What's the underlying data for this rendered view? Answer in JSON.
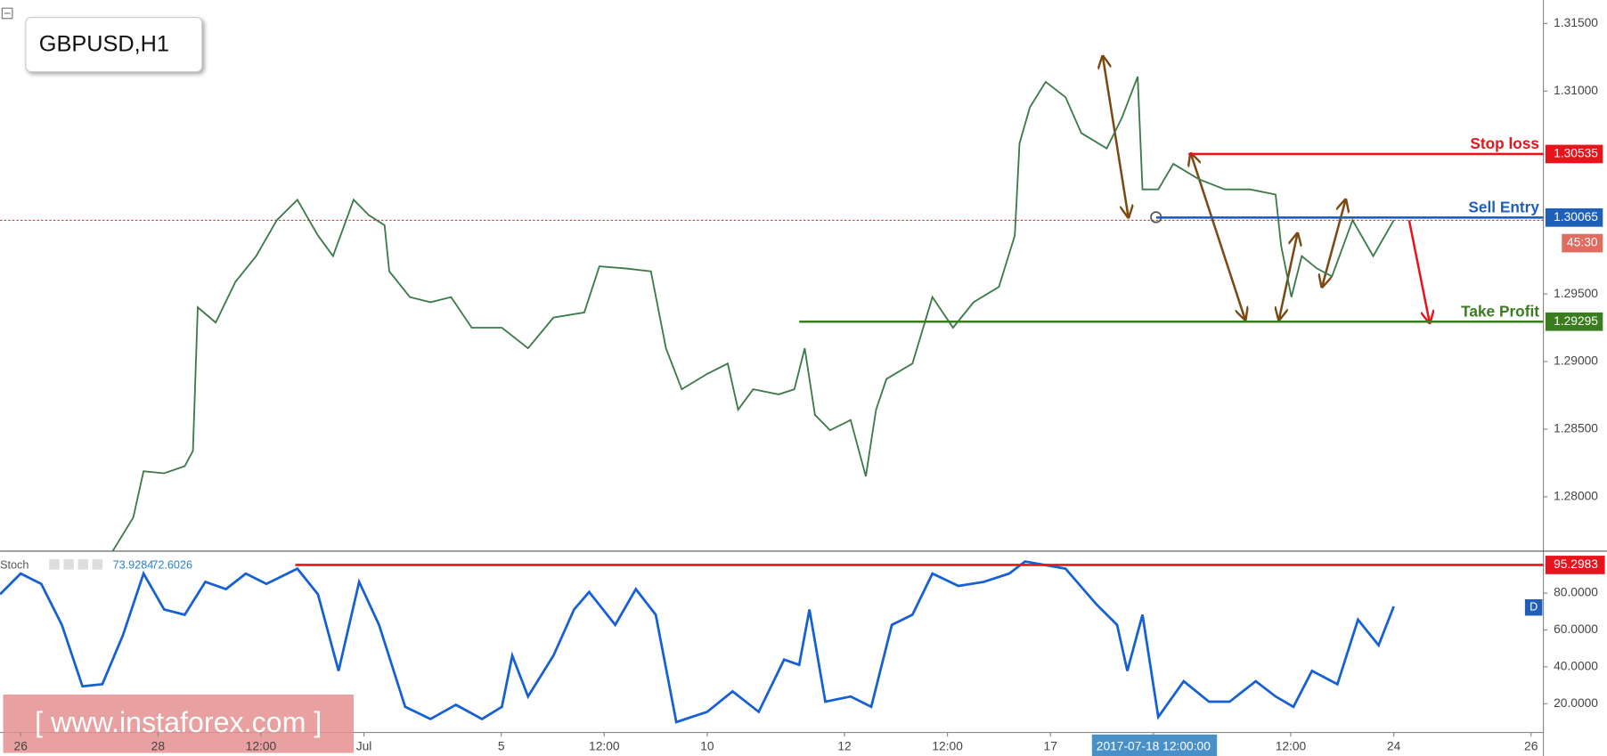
{
  "chart_data": [
    {
      "type": "line",
      "title": "GBPUSD,H1",
      "color": "#3d7a4a",
      "x": [
        1.34,
        1.64,
        1.79,
        2.09,
        2.39,
        2.51,
        2.58,
        2.84,
        3.13,
        3.43,
        3.73,
        4.03,
        4.33,
        4.55,
        4.85,
        5.07,
        5.3,
        5.37,
        5.67,
        5.97,
        6.27,
        6.57,
        7.01,
        7.39,
        7.76,
        8.21,
        8.43,
        8.81,
        9.18,
        9.4,
        9.63,
        10,
        10.3,
        10.45,
        10.67,
        11.04,
        11.27,
        11.42,
        11.57,
        11.79,
        12.09,
        12.31,
        12.46,
        12.61,
        12.99,
        13.28,
        13.58,
        13.88,
        14.25,
        14.48,
        14.55,
        14.7,
        14.93,
        15.22,
        15.45,
        15.82,
        16.04,
        16.27,
        16.34,
        16.57,
        16.79,
        17.16,
        17.54,
        17.91,
        18.28,
        18.36,
        18.51,
        18.66,
        18.88,
        19.1,
        19.4,
        19.7,
        20
      ],
      "values": [
        1.27598,
        1.27847,
        1.28189,
        1.28174,
        1.28226,
        1.2834,
        1.29401,
        1.29288,
        1.29591,
        1.2978,
        1.30045,
        1.30197,
        1.29932,
        1.2978,
        1.30197,
        1.30083,
        1.30008,
        1.29667,
        1.29477,
        1.29439,
        1.29477,
        1.2925,
        1.2925,
        1.29098,
        1.29325,
        1.29363,
        1.29704,
        1.29689,
        1.29667,
        1.29098,
        1.28795,
        1.28909,
        1.28985,
        1.28644,
        1.28795,
        1.28757,
        1.28795,
        1.29098,
        1.28606,
        1.28492,
        1.28568,
        1.28151,
        1.28644,
        1.28871,
        1.28985,
        1.29477,
        1.2925,
        1.29439,
        1.29553,
        1.29932,
        1.30614,
        1.3088,
        1.31069,
        1.30955,
        1.3069,
        1.30576,
        1.30803,
        1.31107,
        1.30273,
        1.30273,
        1.30462,
        1.30349,
        1.30273,
        1.30273,
        1.30235,
        1.29856,
        1.29477,
        1.2978,
        1.29689,
        1.29629,
        1.30045,
        1.2978,
        1.30045
      ],
      "xlim": [
        -0.3,
        22.18
      ],
      "ylim": [
        1.27598,
        1.31674
      ],
      "yticks": [
        {
          "value": 1.28,
          "label": "1.28000"
        },
        {
          "value": 1.285,
          "label": "1.28500"
        },
        {
          "value": 1.29,
          "label": "1.29000"
        },
        {
          "value": 1.295,
          "label": "1.29500"
        },
        {
          "value": 1.31,
          "label": "1.31000"
        },
        {
          "value": 1.315,
          "label": "1.31500"
        }
      ],
      "xticks": [
        {
          "value": 0,
          "label": "26"
        },
        {
          "value": 2,
          "label": "28"
        },
        {
          "value": 3.5,
          "label": "12:00"
        },
        {
          "value": 5,
          "label": "Jul"
        },
        {
          "value": 7,
          "label": "5"
        },
        {
          "value": 8.5,
          "label": "12:00"
        },
        {
          "value": 10,
          "label": "10"
        },
        {
          "value": 12,
          "label": "12"
        },
        {
          "value": 13.5,
          "label": "12:00"
        },
        {
          "value": 15,
          "label": "17"
        },
        {
          "value": 16.5,
          "label": "2017-07-18 12:00:00",
          "highlight": true
        },
        {
          "value": 18.5,
          "label": "12:00"
        },
        {
          "value": 20,
          "label": "24"
        },
        {
          "value": 22,
          "label": "26"
        }
      ],
      "levels": [
        {
          "label": "Stop loss",
          "value": 1.30535,
          "color": "#e8141c",
          "from": 17.01
        },
        {
          "label": "Sell Entry",
          "value": 1.30065,
          "color": "#1f5fb8",
          "from": 16.54
        },
        {
          "label": "Take Profit",
          "value": 1.29295,
          "color": "#3a7d1e",
          "from": 11.34
        }
      ],
      "countdown": "45:30"
    },
    {
      "type": "line",
      "title": "Stoch",
      "readout": [
        73.9284,
        72.6026
      ],
      "badge": "D",
      "color": "#1560d4",
      "x": [
        -0.3,
        0,
        0.3,
        0.6,
        0.9,
        1.19,
        1.49,
        1.79,
        2.09,
        2.39,
        2.69,
        2.99,
        3.28,
        3.58,
        4.03,
        4.33,
        4.63,
        4.93,
        5.22,
        5.6,
        5.97,
        6.34,
        6.72,
        7.01,
        7.16,
        7.39,
        7.76,
        8.06,
        8.28,
        8.66,
        8.96,
        9.25,
        9.55,
        10,
        10.37,
        10.75,
        11.12,
        11.34,
        11.49,
        11.72,
        12.09,
        12.39,
        12.69,
        12.99,
        13.28,
        13.66,
        14.03,
        14.4,
        14.63,
        15.22,
        15.67,
        15.97,
        16.12,
        16.34,
        16.57,
        16.94,
        17.31,
        17.61,
        17.99,
        18.28,
        18.54,
        18.81,
        19.18,
        19.48,
        19.78,
        20
      ],
      "values": [
        79.4,
        90.6,
        85,
        62.8,
        29.4,
        30.6,
        57.2,
        90.6,
        71.1,
        68.3,
        86.1,
        82.2,
        90.6,
        85,
        93.3,
        79.4,
        37.8,
        86.1,
        62.8,
        18.3,
        11.7,
        19.4,
        11.7,
        18.3,
        46.1,
        23.9,
        46.1,
        71.1,
        80.6,
        62.8,
        82.2,
        68.3,
        10,
        15.6,
        26.7,
        15.6,
        43.9,
        41.1,
        71.1,
        21.1,
        23.9,
        18.3,
        62.8,
        68.3,
        90.6,
        83.9,
        86.1,
        90.6,
        97.2,
        93.3,
        73.9,
        62.8,
        37.8,
        68.3,
        12.8,
        32.2,
        21.1,
        21.1,
        32.2,
        23.9,
        18.3,
        37.8,
        30.6,
        65.6,
        51.7,
        72.8
      ],
      "xlim": [
        -0.3,
        22.18
      ],
      "ylim": [
        4.4,
        102.8
      ],
      "yticks": [
        {
          "value": 20,
          "label": "20.0000"
        },
        {
          "value": 40,
          "label": "40.0000"
        },
        {
          "value": 60,
          "label": "60.0000"
        },
        {
          "value": 80,
          "label": "80.0000"
        }
      ],
      "levels": [
        {
          "value": 95.2983,
          "color": "#e8141c",
          "from": 4
        }
      ]
    }
  ],
  "watermark": "[ www.instaforex.com ]"
}
